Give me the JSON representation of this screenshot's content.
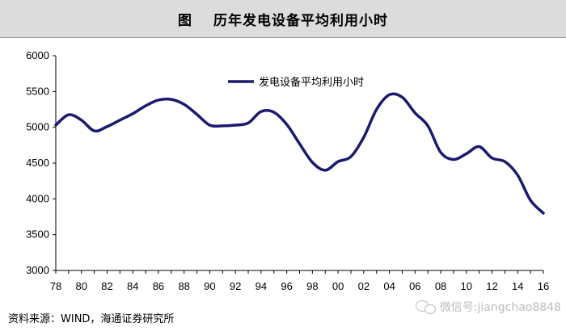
{
  "header": {
    "figure_label": "图",
    "title": "历年发电设备平均利用小时"
  },
  "chart_data": {
    "type": "line",
    "title": "历年发电设备平均利用小时",
    "xlabel": "",
    "ylabel": "",
    "ylim": [
      3000,
      6000
    ],
    "y_ticks": [
      3000,
      3500,
      4000,
      4500,
      5000,
      5500,
      6000
    ],
    "x_ticks": [
      "78",
      "80",
      "82",
      "84",
      "86",
      "88",
      "90",
      "92",
      "94",
      "96",
      "98",
      "00",
      "02",
      "04",
      "06",
      "08",
      "10",
      "12",
      "14",
      "16"
    ],
    "x": [
      1978,
      1979,
      1980,
      1981,
      1982,
      1983,
      1984,
      1985,
      1986,
      1987,
      1988,
      1989,
      1990,
      1991,
      1992,
      1993,
      1994,
      1995,
      1996,
      1997,
      1998,
      1999,
      2000,
      2001,
      2002,
      2003,
      2004,
      2005,
      2006,
      2007,
      2008,
      2009,
      2010,
      2011,
      2012,
      2013,
      2014,
      2015,
      2016
    ],
    "grid": false,
    "legend_position": "top-center",
    "series": [
      {
        "name": "发电设备平均利用小时",
        "color": "#1a1a6e",
        "values": [
          5030,
          5175,
          5100,
          4950,
          5010,
          5100,
          5190,
          5300,
          5380,
          5390,
          5320,
          5180,
          5030,
          5020,
          5030,
          5060,
          5220,
          5210,
          5040,
          4770,
          4510,
          4400,
          4520,
          4590,
          4860,
          5250,
          5455,
          5420,
          5200,
          5020,
          4650,
          4550,
          4630,
          4730,
          4570,
          4520,
          4330,
          3980,
          3800
        ]
      }
    ]
  },
  "footer": {
    "source": "资料来源：WIND，海通证券研究所",
    "watermark": "微信号:jiangchao8848",
    "watermark_icon": "wechat-icon"
  }
}
